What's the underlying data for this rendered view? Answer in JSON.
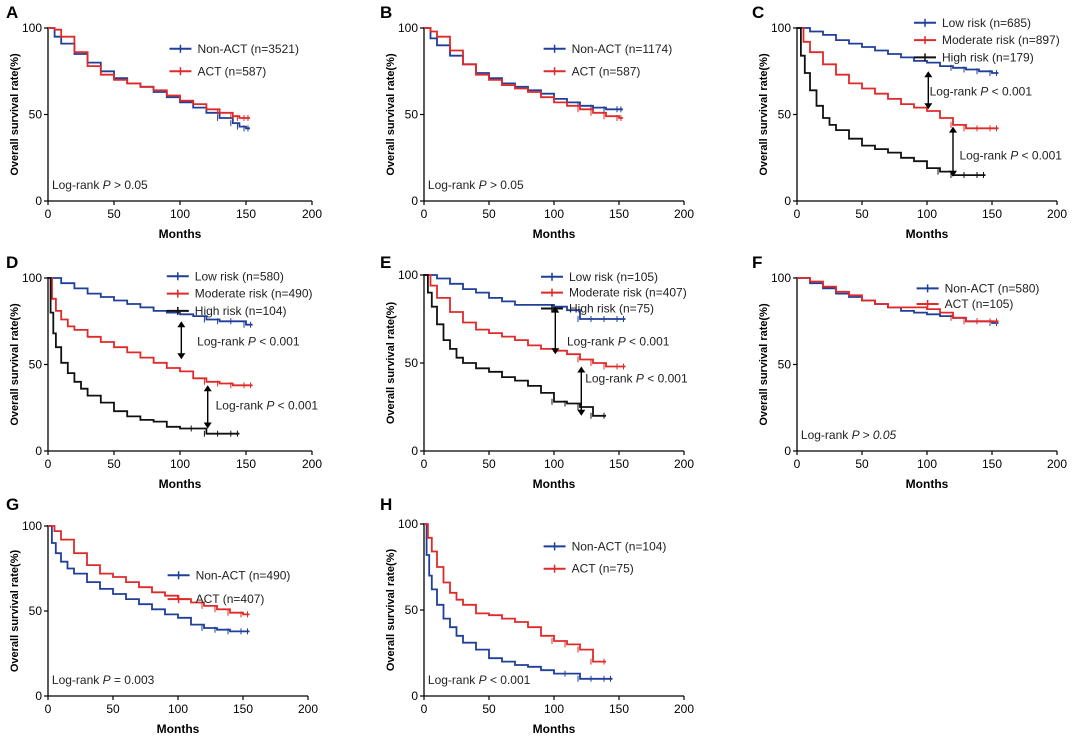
{
  "figure": {
    "colors": {
      "blue": "#1f3f9a",
      "red": "#e02a2a",
      "black": "#111111"
    },
    "months_label": "Months",
    "months_ticks": [
      "0",
      "50",
      "100",
      "150",
      "200"
    ],
    "survival_ticks": [
      "0",
      "50",
      "100"
    ]
  },
  "chart_data": [
    {
      "panel": "A",
      "type": "line",
      "xlabel": "Months",
      "ylabel": "Overall survival rate(%)",
      "xlim": [
        0,
        200
      ],
      "ylim": [
        0,
        100
      ],
      "legend": "top-right",
      "series": [
        {
          "name": "Non-ACT (n=3521)",
          "color": "blue",
          "x": [
            0,
            5,
            10,
            20,
            30,
            40,
            50,
            60,
            70,
            80,
            90,
            100,
            110,
            120,
            130,
            140,
            145,
            150,
            153
          ],
          "y": [
            100,
            95,
            91,
            85,
            80,
            75,
            71,
            68,
            66,
            63,
            60,
            57,
            54,
            51,
            48,
            45,
            43,
            42,
            42
          ]
        },
        {
          "name": "ACT (n=587)",
          "color": "red",
          "x": [
            0,
            5,
            10,
            20,
            30,
            40,
            50,
            60,
            70,
            80,
            90,
            100,
            110,
            120,
            130,
            140,
            145,
            150,
            153
          ],
          "y": [
            100,
            99,
            95,
            86,
            78,
            73,
            70,
            68,
            66,
            64,
            61,
            58,
            56,
            53,
            51,
            49,
            48,
            48,
            48
          ]
        }
      ],
      "annotations": [
        {
          "prefix": "Log-rank ",
          "p": "P",
          "suffix": " > 0.05"
        }
      ]
    },
    {
      "panel": "B",
      "type": "line",
      "xlabel": "Months",
      "ylabel": "Overall survival rate(%)",
      "xlim": [
        0,
        200
      ],
      "ylim": [
        0,
        100
      ],
      "legend": "top-right",
      "series": [
        {
          "name": "Non-ACT (n=1174)",
          "color": "blue",
          "x": [
            0,
            5,
            10,
            20,
            30,
            40,
            50,
            60,
            70,
            80,
            90,
            100,
            110,
            120,
            130,
            140,
            150,
            153
          ],
          "y": [
            100,
            94,
            90,
            84,
            79,
            74,
            71,
            68,
            66,
            64,
            62,
            59,
            57,
            55,
            54,
            53,
            53,
            53
          ]
        },
        {
          "name": "ACT (n=587)",
          "color": "red",
          "x": [
            0,
            5,
            10,
            20,
            30,
            40,
            50,
            60,
            70,
            80,
            90,
            100,
            110,
            120,
            130,
            140,
            150,
            153
          ],
          "y": [
            100,
            98,
            95,
            87,
            79,
            73,
            70,
            67,
            65,
            63,
            60,
            57,
            55,
            53,
            51,
            49,
            48,
            48
          ]
        }
      ],
      "annotations": [
        {
          "prefix": "Log-rank ",
          "p": "P",
          "suffix": " > 0.05"
        }
      ]
    },
    {
      "panel": "C",
      "type": "line",
      "xlabel": "Months",
      "ylabel": "Overall survival rate(%)",
      "xlim": [
        0,
        200
      ],
      "ylim": [
        0,
        100
      ],
      "legend": "top-right",
      "series": [
        {
          "name": "Low risk (n=685)",
          "color": "blue",
          "x": [
            0,
            10,
            20,
            30,
            40,
            50,
            60,
            70,
            80,
            90,
            100,
            110,
            120,
            130,
            140,
            150,
            155
          ],
          "y": [
            100,
            98,
            96,
            93,
            91,
            89,
            87,
            85,
            83,
            81,
            80,
            78,
            77,
            76,
            75,
            74,
            74
          ]
        },
        {
          "name": "Moderate risk (n=897)",
          "color": "red",
          "x": [
            0,
            5,
            10,
            20,
            30,
            40,
            50,
            60,
            70,
            80,
            90,
            100,
            110,
            120,
            130,
            140,
            150,
            155
          ],
          "y": [
            100,
            92,
            86,
            79,
            73,
            68,
            65,
            62,
            59,
            56,
            54,
            52,
            48,
            44,
            42,
            42,
            42,
            42
          ]
        },
        {
          "name": "High risk (n=179)",
          "color": "black",
          "x": [
            0,
            3,
            6,
            10,
            15,
            20,
            25,
            30,
            40,
            50,
            60,
            70,
            80,
            90,
            100,
            110,
            120,
            130,
            140,
            145
          ],
          "y": [
            100,
            84,
            74,
            64,
            55,
            48,
            44,
            41,
            36,
            32,
            30,
            28,
            25,
            23,
            19,
            17,
            15,
            15,
            15,
            15
          ]
        }
      ],
      "annotations": [
        {
          "prefix": "Log-rank ",
          "p": "P",
          "suffix": " < 0.001"
        },
        {
          "prefix": "Log-rank ",
          "p": "P",
          "suffix": " < 0.001"
        }
      ]
    },
    {
      "panel": "D",
      "type": "line",
      "xlabel": "Months",
      "ylabel": "Overall survival rate(%)",
      "xlim": [
        0,
        200
      ],
      "ylim": [
        0,
        100
      ],
      "legend": "top-right",
      "series": [
        {
          "name": "Low risk (n=580)",
          "color": "blue",
          "x": [
            0,
            10,
            20,
            30,
            40,
            50,
            60,
            70,
            80,
            90,
            100,
            110,
            120,
            130,
            140,
            150,
            155
          ],
          "y": [
            100,
            97,
            94,
            91,
            89,
            87,
            85,
            83,
            81,
            80,
            79,
            78,
            76,
            75,
            75,
            73,
            73
          ]
        },
        {
          "name": "Moderate risk (n=490)",
          "color": "red",
          "x": [
            0,
            3,
            6,
            10,
            15,
            20,
            30,
            40,
            50,
            60,
            70,
            80,
            90,
            100,
            110,
            120,
            130,
            140,
            150,
            155
          ],
          "y": [
            100,
            88,
            81,
            76,
            72,
            70,
            66,
            63,
            60,
            57,
            54,
            51,
            48,
            46,
            42,
            40,
            39,
            38,
            38,
            38
          ]
        },
        {
          "name": "High risk (n=104)",
          "color": "black",
          "x": [
            0,
            2,
            4,
            6,
            10,
            15,
            20,
            25,
            30,
            40,
            50,
            60,
            70,
            80,
            90,
            100,
            110,
            120,
            130,
            140,
            145
          ],
          "y": [
            100,
            80,
            68,
            60,
            51,
            45,
            40,
            36,
            32,
            28,
            23,
            20,
            18,
            17,
            14,
            13,
            13,
            10,
            10,
            10,
            10
          ]
        }
      ],
      "annotations": [
        {
          "prefix": "Log-rank ",
          "p": "P",
          "suffix": " < 0.001"
        },
        {
          "prefix": "Log-rank ",
          "p": "P",
          "suffix": " < 0.001"
        }
      ]
    },
    {
      "panel": "E",
      "type": "line",
      "xlabel": "Months",
      "ylabel": "Overall survival rate(%)",
      "xlim": [
        0,
        200
      ],
      "ylim": [
        0,
        100
      ],
      "legend": "top-right",
      "series": [
        {
          "name": "Low risk (n=105)",
          "color": "blue",
          "x": [
            0,
            10,
            20,
            30,
            40,
            50,
            60,
            70,
            80,
            90,
            100,
            110,
            120,
            130,
            140,
            150,
            155
          ],
          "y": [
            100,
            98,
            95,
            92,
            90,
            87,
            85,
            83,
            83,
            83,
            82,
            80,
            75,
            75,
            75,
            75,
            75
          ]
        },
        {
          "name": "Moderate risk (n=407)",
          "color": "red",
          "x": [
            0,
            5,
            10,
            20,
            30,
            40,
            50,
            60,
            70,
            80,
            90,
            100,
            110,
            120,
            130,
            140,
            150,
            155
          ],
          "y": [
            100,
            94,
            87,
            79,
            73,
            69,
            67,
            65,
            63,
            60,
            58,
            57,
            55,
            52,
            50,
            48,
            48,
            48
          ]
        },
        {
          "name": "High risk (n=75)",
          "color": "black",
          "x": [
            0,
            3,
            6,
            10,
            15,
            20,
            25,
            30,
            40,
            50,
            60,
            70,
            80,
            90,
            100,
            110,
            120,
            130,
            140
          ],
          "y": [
            100,
            90,
            82,
            72,
            63,
            58,
            53,
            50,
            47,
            45,
            42,
            40,
            37,
            33,
            28,
            27,
            25,
            20,
            20
          ]
        }
      ],
      "annotations": [
        {
          "prefix": "Log-rank ",
          "p": "P",
          "suffix": " < 0.001"
        },
        {
          "prefix": "Log-rank ",
          "p": "P",
          "suffix": " < 0.001"
        }
      ]
    },
    {
      "panel": "F",
      "type": "line",
      "xlabel": "Months",
      "ylabel": "Overall survival rate(%)",
      "xlim": [
        0,
        200
      ],
      "ylim": [
        0,
        100
      ],
      "legend": "top-right",
      "series": [
        {
          "name": "Non-ACT (n=580)",
          "color": "blue",
          "x": [
            0,
            10,
            20,
            30,
            40,
            50,
            60,
            70,
            80,
            90,
            100,
            110,
            120,
            130,
            140,
            150,
            155
          ],
          "y": [
            100,
            97,
            94,
            91,
            89,
            87,
            85,
            83,
            81,
            80,
            79,
            78,
            77,
            75,
            75,
            74,
            74
          ]
        },
        {
          "name": "ACT (n=105)",
          "color": "red",
          "x": [
            0,
            10,
            20,
            30,
            40,
            50,
            60,
            70,
            80,
            90,
            100,
            110,
            120,
            130,
            140,
            150,
            155
          ],
          "y": [
            100,
            98,
            95,
            92,
            90,
            87,
            85,
            83,
            83,
            83,
            82,
            80,
            77,
            75,
            75,
            75,
            75
          ]
        }
      ],
      "annotations": [
        {
          "prefix": "Log-rank ",
          "p": "P",
          "suffix": " > 0.05"
        }
      ]
    },
    {
      "panel": "G",
      "type": "line",
      "xlabel": "Months",
      "ylabel": "Overall survival rate(%)",
      "xlim": [
        0,
        200
      ],
      "ylim": [
        0,
        100
      ],
      "legend": "top-right",
      "series": [
        {
          "name": "Non-ACT (n=490)",
          "color": "blue",
          "x": [
            0,
            3,
            6,
            10,
            15,
            20,
            30,
            40,
            50,
            60,
            70,
            80,
            90,
            100,
            110,
            120,
            130,
            140,
            150,
            155
          ],
          "y": [
            100,
            90,
            84,
            79,
            75,
            72,
            67,
            63,
            60,
            57,
            54,
            51,
            48,
            46,
            42,
            40,
            39,
            38,
            38,
            38
          ]
        },
        {
          "name": "ACT (n=407)",
          "color": "red",
          "x": [
            0,
            5,
            10,
            20,
            30,
            40,
            50,
            60,
            70,
            80,
            90,
            100,
            110,
            120,
            130,
            140,
            150,
            155
          ],
          "y": [
            100,
            97,
            92,
            84,
            77,
            72,
            70,
            67,
            64,
            61,
            59,
            57,
            55,
            53,
            51,
            49,
            48,
            48
          ]
        }
      ],
      "annotations": [
        {
          "prefix": "Log-rank ",
          "p": "P",
          "suffix": " = 0.003"
        }
      ]
    },
    {
      "panel": "H",
      "type": "line",
      "xlabel": "Months",
      "ylabel": "Overall survival rate(%)",
      "xlim": [
        0,
        200
      ],
      "ylim": [
        0,
        100
      ],
      "legend": "top-right",
      "series": [
        {
          "name": "Non-ACT (n=104)",
          "color": "blue",
          "x": [
            0,
            2,
            4,
            6,
            10,
            15,
            20,
            25,
            30,
            40,
            50,
            60,
            70,
            80,
            90,
            100,
            110,
            120,
            130,
            140,
            145
          ],
          "y": [
            100,
            82,
            70,
            62,
            53,
            45,
            40,
            35,
            31,
            27,
            22,
            20,
            18,
            17,
            15,
            13,
            13,
            10,
            10,
            10,
            10
          ]
        },
        {
          "name": "ACT (n=75)",
          "color": "red",
          "x": [
            0,
            3,
            6,
            10,
            15,
            20,
            25,
            30,
            40,
            50,
            60,
            70,
            80,
            90,
            100,
            110,
            120,
            130,
            140
          ],
          "y": [
            100,
            92,
            84,
            75,
            66,
            60,
            56,
            53,
            48,
            47,
            45,
            43,
            40,
            35,
            32,
            30,
            27,
            20,
            20
          ]
        }
      ],
      "annotations": [
        {
          "prefix": "Log-rank ",
          "p": "P",
          "suffix": " < 0.001"
        }
      ]
    }
  ]
}
